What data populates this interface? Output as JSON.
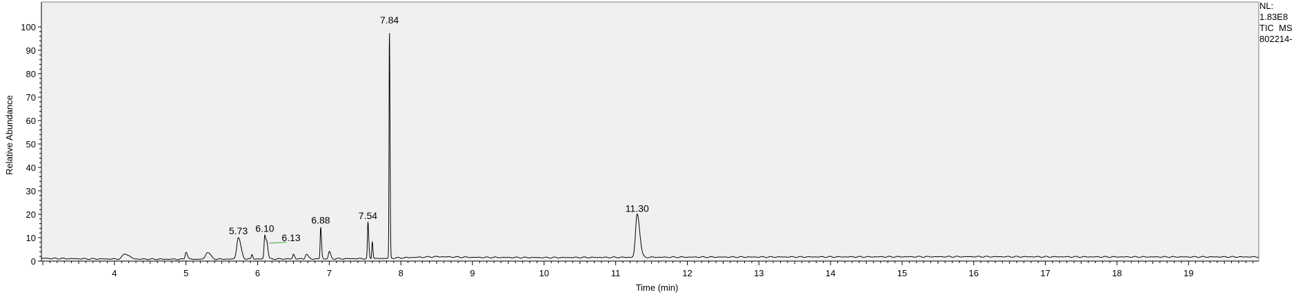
{
  "info_block": [
    "NL:",
    "1.83E8",
    "TIC  MS",
    "802214-"
  ],
  "chart_data": {
    "type": "line",
    "title": "",
    "xlabel": "Time (min)",
    "ylabel": "Relative Abundance",
    "xlim": [
      2.98,
      19.98
    ],
    "ylim": [
      0,
      100
    ],
    "x_ticks": [
      4,
      5,
      6,
      7,
      8,
      9,
      10,
      11,
      12,
      13,
      14,
      15,
      16,
      17,
      18,
      19
    ],
    "y_ticks": [
      0,
      10,
      20,
      30,
      40,
      50,
      60,
      70,
      80,
      90,
      100
    ],
    "grid": false,
    "colors": {
      "trace": "#000000",
      "annotation_line": "#3aa23a",
      "plot_bg": "#f0f0f0",
      "frame": "#7a7a7a"
    },
    "peak_labels": [
      {
        "label": "5.73",
        "x": 5.73,
        "y": 10
      },
      {
        "label": "6.10",
        "x": 6.1,
        "y": 11
      },
      {
        "label": "6.13",
        "x": 6.13,
        "y": 7
      },
      {
        "label": "6.88",
        "x": 6.88,
        "y": 14.5
      },
      {
        "label": "7.54",
        "x": 7.54,
        "y": 16.5
      },
      {
        "label": "7.84",
        "x": 7.84,
        "y": 100
      },
      {
        "label": "11.30",
        "x": 11.3,
        "y": 19.5
      }
    ],
    "series": [
      {
        "baseline": [
          [
            2.98,
            1.2
          ],
          [
            3.5,
            1.0
          ],
          [
            4.0,
            0.9
          ],
          [
            5.0,
            0.8
          ],
          [
            6.0,
            0.9
          ],
          [
            7.0,
            1.0
          ],
          [
            7.7,
            1.1
          ],
          [
            8.5,
            1.9
          ],
          [
            9.0,
            1.6
          ],
          [
            10.0,
            1.5
          ],
          [
            11.0,
            1.6
          ],
          [
            12.0,
            1.7
          ],
          [
            14.0,
            1.8
          ],
          [
            16.0,
            1.9
          ],
          [
            18.0,
            1.8
          ],
          [
            19.98,
            1.8
          ]
        ],
        "peaks": [
          {
            "rt": 4.15,
            "height": 2.2,
            "width": 0.035
          },
          {
            "rt": 5.0,
            "height": 3.2,
            "width": 0.012
          },
          {
            "rt": 5.3,
            "height": 3.0,
            "width": 0.025
          },
          {
            "rt": 5.73,
            "height": 9.2,
            "width": 0.022
          },
          {
            "rt": 5.92,
            "height": 2.0,
            "width": 0.008
          },
          {
            "rt": 6.1,
            "height": 10.2,
            "width": 0.01
          },
          {
            "rt": 6.13,
            "height": 6.0,
            "width": 0.01
          },
          {
            "rt": 6.5,
            "height": 2.0,
            "width": 0.01
          },
          {
            "rt": 6.68,
            "height": 2.0,
            "width": 0.015
          },
          {
            "rt": 6.88,
            "height": 13.6,
            "width": 0.007
          },
          {
            "rt": 7.0,
            "height": 3.0,
            "width": 0.012
          },
          {
            "rt": 7.54,
            "height": 15.5,
            "width": 0.007
          },
          {
            "rt": 7.6,
            "height": 7.5,
            "width": 0.006
          },
          {
            "rt": 7.84,
            "height": 99.0,
            "width": 0.005
          },
          {
            "rt": 11.3,
            "height": 18.5,
            "width": 0.022
          }
        ],
        "annotation_line": {
          "from": [
            6.16,
            7.7
          ],
          "to": [
            6.4,
            8.0
          ]
        }
      }
    ]
  }
}
